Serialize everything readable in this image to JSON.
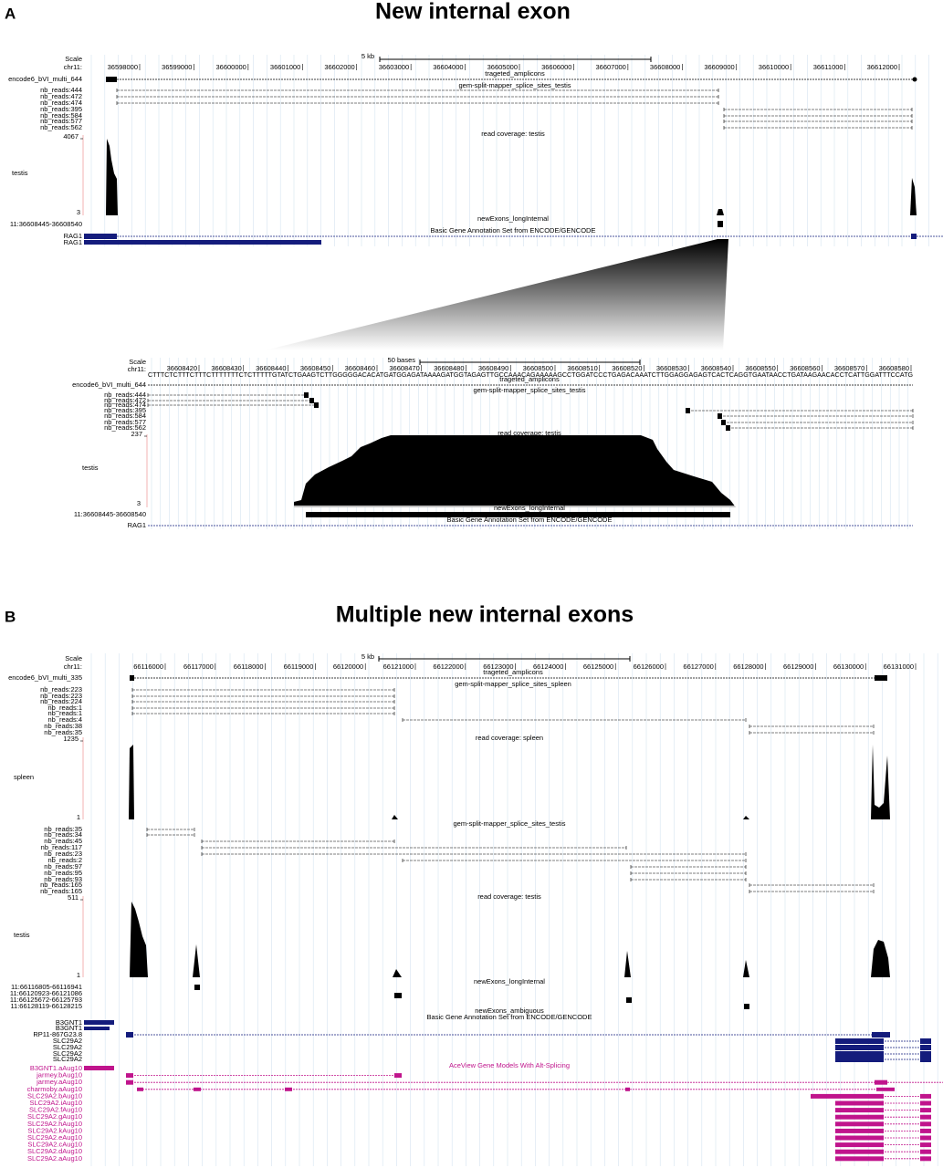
{
  "panel_a": {
    "letter": "A",
    "title": "New internal exon",
    "scale_label": "Scale",
    "scale_bar": "5 kb",
    "chrom": "chr11:",
    "positions": [
      "36598000",
      "36599000",
      "36600000",
      "36601000",
      "36602000",
      "36603000",
      "36604000",
      "36605000",
      "36606000",
      "36607000",
      "36608000",
      "36609000",
      "36610000",
      "36611000",
      "36612000"
    ],
    "amplicons": "trageted_amplicons",
    "encode": "encode6_bVI_multi_644",
    "splice_track": "gem-split-mapper_splice_sites_testis",
    "reads": [
      "nb_reads:444",
      "nb_reads:472",
      "nb_reads:474",
      "nb_reads:395",
      "nb_reads:584",
      "nb_reads:577",
      "nb_reads:562"
    ],
    "coverage_max": "4067",
    "coverage_track": "read coverage: testis",
    "coverage_label": "testis",
    "coverage_min": "3",
    "exon_track": "newExons_longInternal",
    "exon_label": "11:36608445-36608540",
    "gene_track": "Basic Gene Annotation Set from ENCODE/GENCODE",
    "genes": [
      "RAG1",
      "RAG1"
    ],
    "zoom": {
      "scale_label": "Scale",
      "scale_bar": "50 bases",
      "chrom": "chr11:",
      "positions": [
        "36608420",
        "36608430",
        "36608440",
        "36608450",
        "36608460",
        "36608470",
        "36608480",
        "36608490",
        "36608500",
        "36608510",
        "36608520",
        "36608530",
        "36608540",
        "36608550",
        "36608560",
        "36608570",
        "36608580"
      ],
      "sequence": "CTTTCTCTTTCTTTCTTTTTTTCTCTTTTTGTATCTGAAGTCTTGGGGGACACATGATGGAGATAAAAGATGGTAGAGTTGCCAAACAGAAAAAGCCTGGATCCCTGAGACAAATCTTGGAGGAGAGTCACTCAGGTGAATAACCTGATAAGAACACCTCATTGGATTTCCATG",
      "amplicons": "trageted_amplicons",
      "encode": "encode6_bVI_multi_644",
      "splice_track": "gem-split-mapper_splice_sites_testis",
      "reads": [
        "nb_reads:444",
        "nb_reads:472",
        "nb_reads:474",
        "nb_reads:395",
        "nb_reads:584",
        "nb_reads:577",
        "nb_reads:562"
      ],
      "coverage_max": "237",
      "coverage_track": "read coverage: testis",
      "coverage_label": "testis",
      "coverage_min": "3",
      "exon_track": "newExons_longInternal",
      "exon_label": "11:36608445-36608540",
      "gene_track": "Basic Gene Annotation Set from ENCODE/GENCODE",
      "genes": [
        "RAG1"
      ]
    }
  },
  "panel_b": {
    "letter": "B",
    "title": "Multiple new internal exons",
    "scale_label": "Scale",
    "scale_bar": "5 kb",
    "chrom": "chr11:",
    "positions": [
      "66116000",
      "66117000",
      "66118000",
      "66119000",
      "66120000",
      "66121000",
      "66122000",
      "66123000",
      "66124000",
      "66125000",
      "66126000",
      "66127000",
      "66128000",
      "66129000",
      "66130000",
      "66131000"
    ],
    "amplicons": "trageted_amplicons",
    "encode": "encode6_bVI_multi_335",
    "spleen": {
      "splice_track": "gem-split-mapper_splice_sites_spleen",
      "reads": [
        "nb_reads:223",
        "nb_reads:223",
        "nb_reads:224",
        "nb_reads:1",
        "nb_reads:1",
        "nb_reads:4",
        "nb_reads:38",
        "nb_reads:35"
      ],
      "coverage_max": "1235",
      "coverage_track": "read coverage: spleen",
      "coverage_label": "spleen",
      "coverage_min": "1"
    },
    "testis": {
      "splice_track": "gem-split-mapper_splice_sites_testis",
      "reads": [
        "nb_reads:35",
        "nb_reads:34",
        "nb_reads:45",
        "nb_reads:117",
        "nb_reads:23",
        "nb_reads:2",
        "nb_reads:97",
        "nb_reads:95",
        "nb_reads:93",
        "nb_reads:165",
        "nb_reads:165"
      ],
      "coverage_max": "511",
      "coverage_track": "read coverage: testis",
      "coverage_label": "testis",
      "coverage_min": "1"
    },
    "exon_track": "newExons_longInternal",
    "exon_labels": [
      "11:66116805-66116941",
      "11:66120923-66121086",
      "11:66125672-66125793",
      "11:66128119-66128215"
    ],
    "ambiguous_track": "newExons_ambiguous",
    "gene_track": "Basic Gene Annotation Set from ENCODE/GENCODE",
    "genes": [
      "B3GNT1",
      "B3GNT1",
      "RP11-867G23.8",
      "SLC29A2",
      "SLC29A2",
      "SLC29A2",
      "SLC29A2"
    ],
    "aceview_track": "AceView Gene Models With Alt-Splicing",
    "aceview": [
      "B3GNT1.aAug10",
      "jarmey.bAug10",
      "jarmey.aAug10",
      "charmoby.aAug10",
      "SLC29A2.bAug10",
      "SLC29A2.iAug10",
      "SLC29A2.fAug10",
      "SLC29A2.gAug10",
      "SLC29A2.hAug10",
      "SLC29A2.kAug10",
      "SLC29A2.eAug10",
      "SLC29A2.cAug10",
      "SLC29A2.dAug10",
      "SLC29A2.aAug10"
    ]
  }
}
